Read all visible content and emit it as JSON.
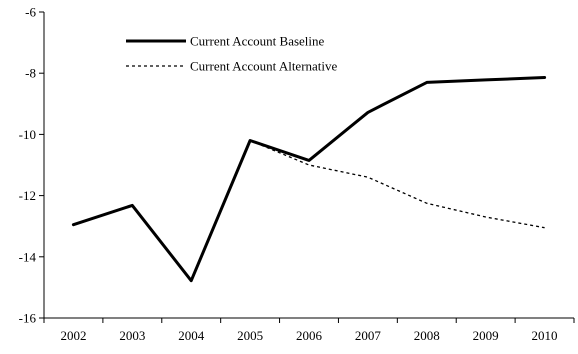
{
  "chart_data": {
    "type": "line",
    "categories": [
      "2002",
      "2003",
      "2004",
      "2005",
      "2006",
      "2007",
      "2008",
      "2009",
      "2010"
    ],
    "ylim": [
      -16,
      -6
    ],
    "yticks": [
      -6,
      -8,
      -10,
      -12,
      -14,
      -16
    ],
    "grid": false,
    "legend_position": "top-left",
    "series": [
      {
        "name": "Current Account Baseline",
        "style": "solid",
        "color": "#000000",
        "values": [
          -12.95,
          -12.32,
          -14.78,
          -10.2,
          -10.85,
          -9.28,
          -8.3,
          -8.22,
          -8.14
        ]
      },
      {
        "name": "Current Account Alternative",
        "style": "dotted",
        "color": "#000000",
        "values": [
          null,
          null,
          null,
          -10.2,
          -11.0,
          -11.4,
          -12.25,
          -12.7,
          -13.05
        ]
      }
    ]
  }
}
